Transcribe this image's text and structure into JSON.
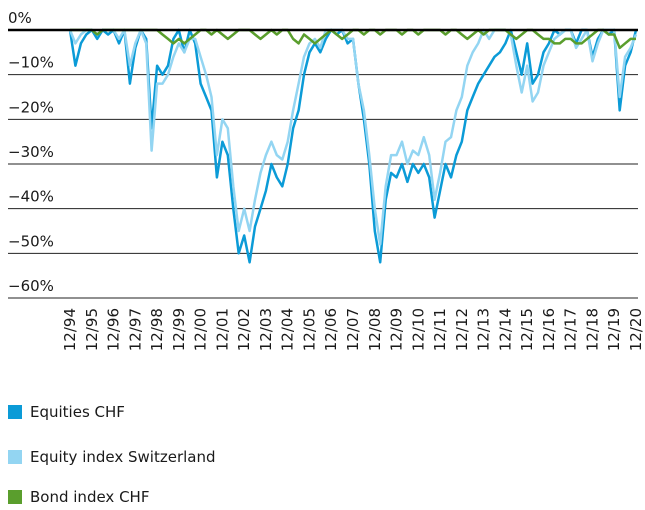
{
  "chart_data": {
    "type": "line",
    "x": [
      "12/94",
      "03/95",
      "06/95",
      "09/95",
      "12/95",
      "03/96",
      "06/96",
      "09/96",
      "12/96",
      "03/97",
      "06/97",
      "09/97",
      "12/97",
      "03/98",
      "06/98",
      "09/98",
      "12/98",
      "03/99",
      "06/99",
      "09/99",
      "12/99",
      "03/00",
      "06/00",
      "09/00",
      "12/00",
      "03/01",
      "06/01",
      "09/01",
      "12/01",
      "03/02",
      "06/02",
      "09/02",
      "12/02",
      "03/03",
      "06/03",
      "09/03",
      "12/03",
      "03/04",
      "06/04",
      "09/04",
      "12/04",
      "03/05",
      "06/05",
      "09/05",
      "12/05",
      "03/06",
      "06/06",
      "09/06",
      "12/06",
      "03/07",
      "06/07",
      "09/07",
      "12/07",
      "03/08",
      "06/08",
      "09/08",
      "12/08",
      "03/09",
      "06/09",
      "09/09",
      "12/09",
      "03/10",
      "06/10",
      "09/10",
      "12/10",
      "03/11",
      "06/11",
      "09/11",
      "12/11",
      "03/12",
      "06/12",
      "09/12",
      "12/12",
      "03/13",
      "06/13",
      "09/13",
      "12/13",
      "03/14",
      "06/14",
      "09/14",
      "12/14",
      "03/15",
      "06/15",
      "09/15",
      "12/15",
      "03/16",
      "06/16",
      "09/16",
      "12/16",
      "03/17",
      "06/17",
      "09/17",
      "12/17",
      "03/18",
      "06/18",
      "09/18",
      "12/18",
      "03/19",
      "06/19",
      "09/19",
      "12/19",
      "03/20",
      "06/20",
      "09/20",
      "12/20"
    ],
    "xticks": [
      "12/94",
      "12/95",
      "12/96",
      "12/97",
      "12/98",
      "12/99",
      "12/00",
      "12/01",
      "12/02",
      "12/03",
      "12/04",
      "12/05",
      "12/06",
      "12/07",
      "12/08",
      "12/09",
      "12/10",
      "12/11",
      "12/12",
      "12/13",
      "12/14",
      "12/15",
      "12/16",
      "12/17",
      "12/18",
      "12/19",
      "12/20"
    ],
    "ylim": [
      -60,
      0
    ],
    "yticks": [
      {
        "value": 0,
        "label": "0%"
      },
      {
        "value": -10,
        "label": "−10%"
      },
      {
        "value": -20,
        "label": "−20%"
      },
      {
        "value": -30,
        "label": "−30%"
      },
      {
        "value": -40,
        "label": "−40%"
      },
      {
        "value": -50,
        "label": "−50%"
      },
      {
        "value": -60,
        "label": "−60%"
      }
    ],
    "grid": true,
    "series": [
      {
        "name": "Equities CHF",
        "color": "#0b9bd7",
        "values": [
          0,
          -8,
          -3,
          -1,
          0,
          -2,
          0,
          -1,
          0,
          -3,
          0,
          -12,
          -4,
          0,
          -2,
          -22,
          -8,
          -10,
          -8,
          -2,
          0,
          -5,
          0,
          -3,
          -12,
          -15,
          -18,
          -33,
          -25,
          -28,
          -40,
          -50,
          -46,
          -52,
          -44,
          -40,
          -36,
          -30,
          -33,
          -35,
          -30,
          -22,
          -18,
          -10,
          -5,
          -3,
          -5,
          -2,
          0,
          -1,
          0,
          -3,
          -2,
          -12,
          -20,
          -30,
          -45,
          -52,
          -38,
          -32,
          -33,
          -30,
          -34,
          -30,
          -32,
          -30,
          -33,
          -42,
          -36,
          -30,
          -33,
          -28,
          -25,
          -18,
          -15,
          -12,
          -10,
          -8,
          -6,
          -5,
          -3,
          0,
          -5,
          -10,
          -3,
          -12,
          -10,
          -5,
          -3,
          0,
          -1,
          0,
          0,
          -3,
          0,
          0,
          -6,
          -2,
          0,
          -1,
          0,
          -18,
          -8,
          -5,
          0
        ]
      },
      {
        "name": "Equity index Switzerland",
        "color": "#93d5f2",
        "values": [
          0,
          -3,
          -1,
          0,
          0,
          -1,
          0,
          0,
          0,
          -2,
          0,
          -8,
          -3,
          0,
          -3,
          -27,
          -12,
          -12,
          -10,
          -6,
          -3,
          -5,
          -2,
          -2,
          -6,
          -10,
          -15,
          -28,
          -20,
          -22,
          -35,
          -45,
          -40,
          -45,
          -38,
          -32,
          -28,
          -25,
          -28,
          -29,
          -25,
          -18,
          -12,
          -6,
          -3,
          -2,
          -4,
          0,
          0,
          0,
          0,
          -2,
          -2,
          -12,
          -18,
          -28,
          -40,
          -48,
          -35,
          -28,
          -28,
          -25,
          -30,
          -27,
          -28,
          -24,
          -28,
          -38,
          -32,
          -25,
          -24,
          -18,
          -15,
          -8,
          -5,
          -3,
          0,
          -2,
          0,
          0,
          0,
          -1,
          -8,
          -14,
          -8,
          -16,
          -14,
          -8,
          -5,
          -2,
          -1,
          0,
          0,
          -4,
          -2,
          0,
          -7,
          -3,
          0,
          0,
          0,
          -15,
          -6,
          -4,
          -1
        ]
      },
      {
        "name": "Bond index CHF",
        "color": "#5a9e2d",
        "values": [
          0,
          0,
          0,
          0,
          0,
          -1,
          0,
          0,
          0,
          0,
          0,
          0,
          0,
          0,
          0,
          0,
          0,
          -1,
          -2,
          -3,
          -2,
          -3,
          -2,
          -1,
          0,
          0,
          -1,
          0,
          -1,
          -2,
          -1,
          0,
          0,
          0,
          -1,
          -2,
          -1,
          0,
          -1,
          0,
          0,
          -2,
          -3,
          -1,
          -2,
          -3,
          -2,
          -1,
          0,
          -1,
          -2,
          -1,
          0,
          0,
          -1,
          0,
          0,
          -1,
          0,
          0,
          0,
          -1,
          0,
          0,
          -1,
          0,
          0,
          0,
          0,
          -1,
          0,
          0,
          -1,
          -2,
          -1,
          0,
          -1,
          0,
          0,
          0,
          0,
          -1,
          -2,
          -1,
          0,
          0,
          -1,
          -2,
          -2,
          -3,
          -3,
          -2,
          -2,
          -3,
          -3,
          -2,
          -1,
          0,
          0,
          -1,
          -1,
          -4,
          -3,
          -2,
          -2
        ]
      }
    ]
  }
}
